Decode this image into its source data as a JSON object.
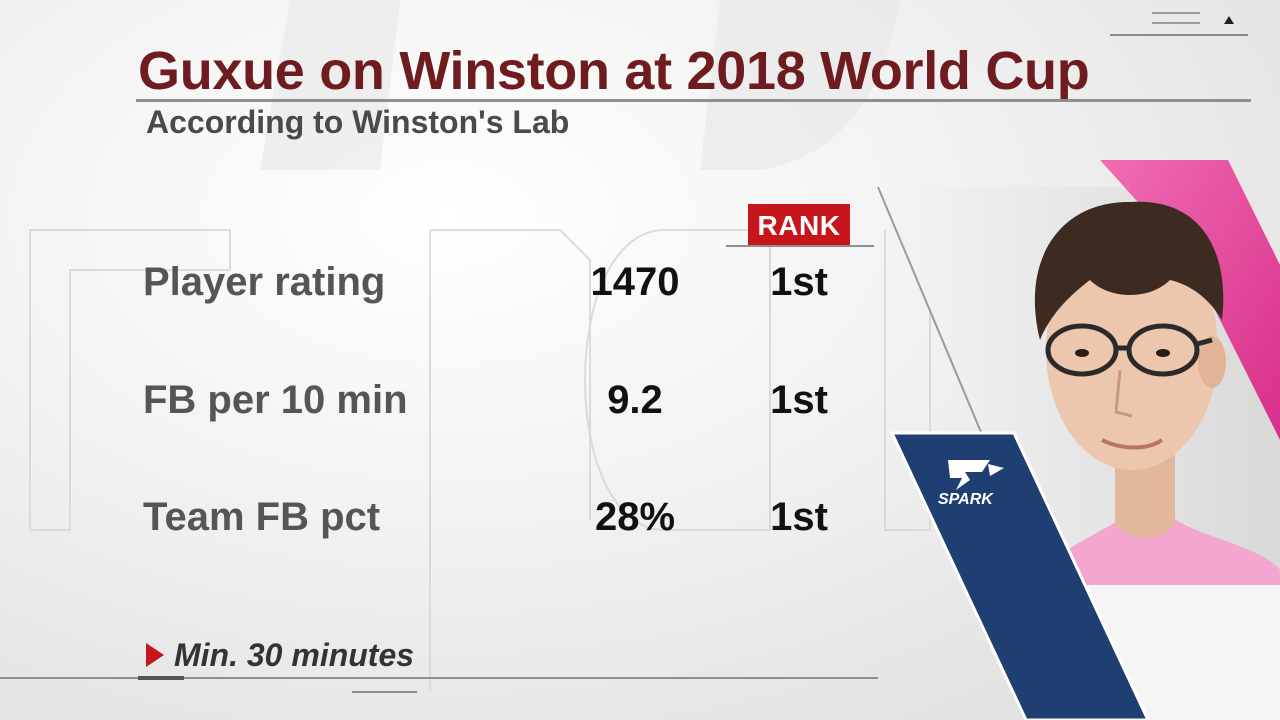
{
  "header": {
    "title": "Guxue on Winston at 2018 World Cup",
    "subtitle": "According to Winston's Lab"
  },
  "table": {
    "rank_header": "RANK",
    "rows": [
      {
        "label": "Player rating",
        "value": "1470",
        "rank": "1st"
      },
      {
        "label": "FB per 10 min",
        "value": "9.2",
        "rank": "1st"
      },
      {
        "label": "Team FB pct",
        "value": "28%",
        "rank": "1st"
      }
    ]
  },
  "footnote": "Min. 30 minutes",
  "team_logo": "SPARK",
  "colors": {
    "title": "#6e1c1f",
    "accent_red": "#c6161c",
    "team_blue": "#1f3f73",
    "team_pink": "#e6419a"
  },
  "icons": [
    "menu-lines-icon",
    "up-arrow-icon",
    "play-marker-icon",
    "spark-logo-icon"
  ]
}
